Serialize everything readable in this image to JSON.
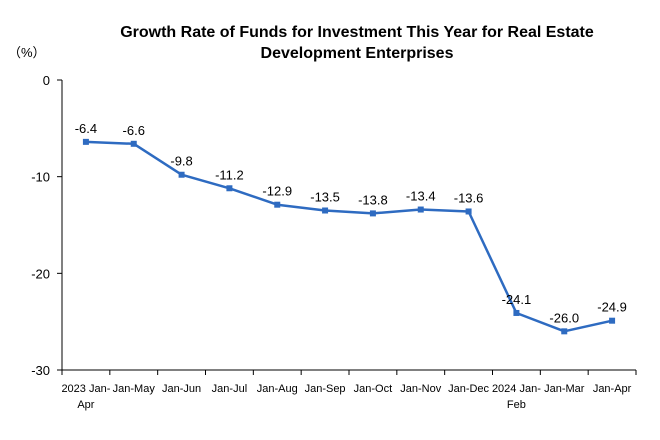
{
  "chart_data": {
    "type": "line",
    "title_lines": [
      "Growth Rate of Funds for Investment This Year for Real Estate",
      "Development Enterprises"
    ],
    "unit_label": "（%）",
    "ylim": [
      -30,
      0
    ],
    "y_ticks": [
      0,
      -10,
      -20,
      -30
    ],
    "categories": [
      [
        "2023 Jan-",
        "Apr"
      ],
      [
        "Jan-May"
      ],
      [
        "Jan-Jun"
      ],
      [
        "Jan-Jul"
      ],
      [
        "Jan-Aug"
      ],
      [
        "Jan-Sep"
      ],
      [
        "Jan-Oct"
      ],
      [
        "Jan-Nov"
      ],
      [
        "Jan-Dec"
      ],
      [
        "2024 Jan-",
        "Feb"
      ],
      [
        "Jan-Mar"
      ],
      [
        "Jan-Apr"
      ]
    ],
    "values": [
      -6.4,
      -6.6,
      -9.8,
      -11.2,
      -12.9,
      -13.5,
      -13.8,
      -13.4,
      -13.6,
      -24.1,
      -26.0,
      -24.9
    ],
    "value_labels": [
      "-6.4",
      "-6.6",
      "-9.8",
      "-11.2",
      "-12.9",
      "-13.5",
      "-13.8",
      "-13.4",
      "-13.6",
      "-24.1",
      "-26.0",
      "-24.9"
    ],
    "line_color": "#2E6BC1",
    "axis_color": "#000000",
    "grid": false,
    "legend": "none"
  }
}
